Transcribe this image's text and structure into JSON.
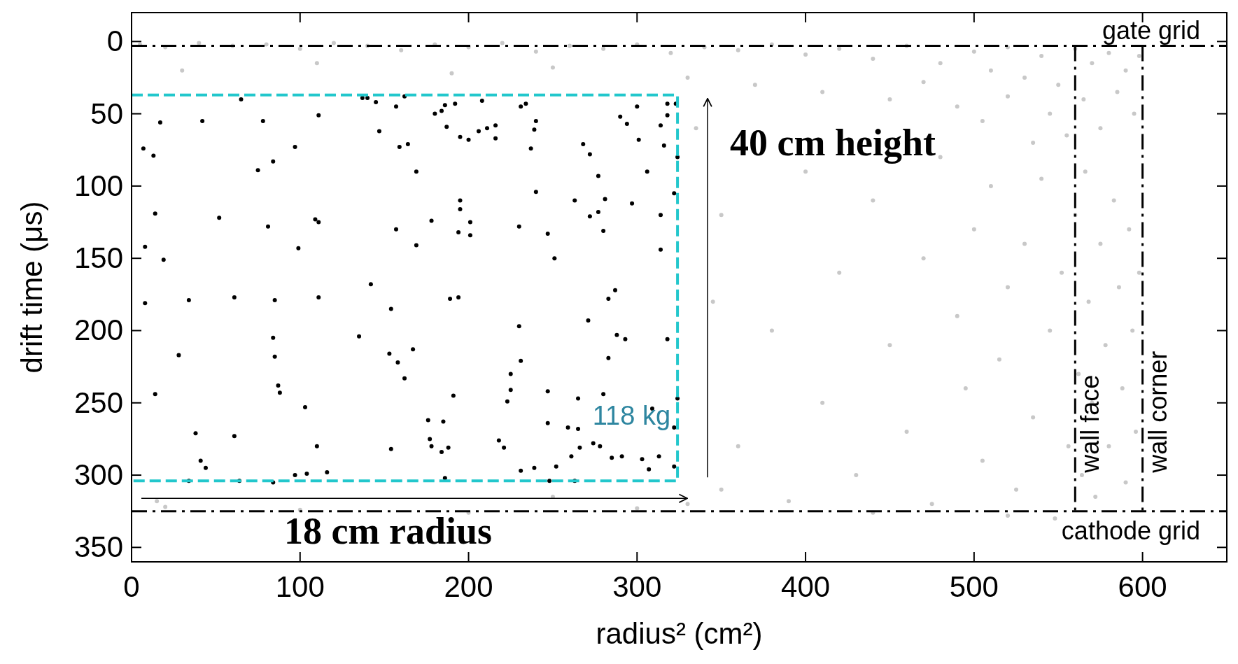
{
  "chart_data": {
    "type": "scatter",
    "xlabel": "radius² (cm²)",
    "ylabel": "drift time (μs)",
    "xlim": [
      0,
      650
    ],
    "ylim": [
      360,
      -20
    ],
    "xticks": [
      0,
      100,
      200,
      300,
      400,
      500,
      600
    ],
    "yticks": [
      0,
      50,
      100,
      150,
      200,
      250,
      300,
      350
    ],
    "series": [
      {
        "color": "#c8c8c8",
        "marker": "circle",
        "x": [
          5,
          20,
          40,
          60,
          80,
          100,
          120,
          140,
          160,
          180,
          200,
          220,
          240,
          260,
          280,
          300,
          320,
          340,
          360,
          380,
          400,
          420,
          440,
          460,
          480,
          500,
          510,
          520,
          530,
          540,
          550,
          560,
          565,
          570,
          575,
          580,
          585,
          590,
          595,
          598,
          30,
          110,
          190,
          250,
          330,
          370,
          410,
          450,
          470,
          490,
          505,
          520,
          535,
          545,
          555,
          350,
          380,
          400,
          410,
          420,
          430,
          440,
          450,
          460,
          470,
          475,
          480,
          490,
          495,
          500,
          505,
          510,
          515,
          520,
          525,
          530,
          535,
          540,
          545,
          548,
          552,
          556,
          560,
          562,
          564,
          566,
          568,
          570,
          572,
          575,
          578,
          580,
          583,
          586,
          588,
          590,
          592,
          594,
          596,
          598,
          20,
          100,
          200,
          300,
          350,
          390,
          440,
          520,
          335,
          345,
          360,
          330,
          15,
          250
        ],
        "values": [
          2,
          4,
          1,
          3,
          2,
          5,
          1,
          3,
          6,
          2,
          4,
          1,
          7,
          3,
          5,
          2,
          8,
          4,
          6,
          2,
          9,
          5,
          12,
          3,
          15,
          7,
          20,
          4,
          25,
          10,
          30,
          5,
          40,
          15,
          60,
          8,
          35,
          20,
          50,
          10,
          20,
          15,
          22,
          18,
          25,
          30,
          35,
          40,
          28,
          45,
          55,
          38,
          70,
          50,
          65,
          120,
          200,
          90,
          250,
          160,
          300,
          110,
          210,
          270,
          150,
          320,
          80,
          190,
          240,
          130,
          290,
          100,
          220,
          170,
          310,
          140,
          260,
          95,
          200,
          330,
          160,
          280,
          120,
          230,
          300,
          90,
          180,
          250,
          315,
          140,
          210,
          280,
          110,
          170,
          240,
          305,
          130,
          200,
          270,
          160,
          322,
          324,
          326,
          323,
          310,
          318,
          326,
          328,
          60,
          180,
          280,
          320,
          318,
          315
        ]
      },
      {
        "color": "#000000",
        "marker": "circle",
        "x": [
          65,
          17,
          42,
          78,
          111,
          137,
          140,
          145,
          157,
          162,
          147,
          7,
          13,
          97,
          84,
          75,
          159,
          164,
          169,
          14,
          52,
          81,
          109,
          111,
          157,
          8,
          19,
          99,
          169,
          142,
          8,
          34,
          61,
          85,
          111,
          154,
          84,
          135,
          28,
          85,
          153,
          158,
          167,
          162,
          14,
          87,
          88,
          103,
          38,
          61,
          110,
          154,
          41,
          44,
          34,
          64,
          84,
          97,
          104,
          116,
          186,
          192,
          184,
          180,
          208,
          231,
          234,
          187,
          195,
          200,
          206,
          211,
          216,
          216,
          240,
          239,
          237,
          300,
          318,
          323,
          318,
          290,
          294,
          314,
          301,
          316,
          268,
          272,
          324,
          277,
          306,
          240,
          195,
          195,
          263,
          281,
          297,
          272,
          277,
          322,
          314,
          178,
          201,
          194,
          201,
          230,
          247,
          280,
          314,
          251,
          287,
          283,
          189,
          194,
          230,
          271,
          288,
          293,
          318,
          231,
          283,
          225,
          225,
          223,
          191,
          247,
          265,
          280,
          324,
          309,
          176,
          185,
          247,
          259,
          265,
          322,
          177,
          178,
          184,
          188,
          218,
          221,
          266,
          274,
          278,
          261,
          285,
          291,
          303,
          313,
          322,
          307,
          231,
          239,
          252,
          186,
          248,
          263
        ],
        "values": [
          40,
          56,
          55,
          55,
          51,
          39,
          39,
          42,
          45,
          38,
          62,
          74,
          79,
          73,
          83,
          89,
          73,
          71,
          90,
          119,
          122,
          128,
          123,
          125,
          130,
          142,
          151,
          143,
          141,
          168,
          181,
          179,
          177,
          179,
          177,
          185,
          205,
          204,
          217,
          218,
          216,
          222,
          213,
          233,
          244,
          238,
          243,
          253,
          271,
          273,
          280,
          282,
          290,
          295,
          304,
          304,
          305,
          300,
          299,
          298,
          44,
          43,
          48,
          50,
          41,
          45,
          43,
          59,
          66,
          68,
          62,
          60,
          58,
          67,
          55,
          61,
          74,
          45,
          43,
          43,
          51,
          52,
          57,
          58,
          68,
          72,
          71,
          78,
          80,
          93,
          90,
          104,
          110,
          116,
          110,
          109,
          112,
          121,
          118,
          105,
          120,
          124,
          125,
          132,
          134,
          128,
          133,
          131,
          144,
          150,
          172,
          178,
          178,
          177,
          197,
          193,
          203,
          206,
          206,
          221,
          219,
          230,
          241,
          249,
          245,
          242,
          247,
          244,
          247,
          254,
          262,
          263,
          264,
          267,
          268,
          267,
          275,
          280,
          284,
          281,
          276,
          281,
          281,
          278,
          280,
          287,
          288,
          287,
          289,
          287,
          294,
          296,
          297,
          295,
          294,
          302,
          304,
          304
        ]
      },
      {
        "type": "line",
        "color": "#22c7cc",
        "line_style": "dashed",
        "marker": "none",
        "x": [
          0,
          324,
          324,
          0
        ],
        "values": [
          37,
          37,
          304,
          304
        ]
      }
    ],
    "ref_lines": [
      {
        "axis": "y",
        "value": 3,
        "label": "gate grid",
        "color": "#000000",
        "line_style": "dashed"
      },
      {
        "axis": "y",
        "value": 325,
        "label": "cathode grid",
        "color": "#000000",
        "line_style": "dashed"
      },
      {
        "axis": "x",
        "value": 560,
        "label": "wall face",
        "color": "#000000",
        "line_style": "dashed"
      },
      {
        "axis": "x",
        "value": 600,
        "label": "wall corner",
        "color": "#000000",
        "line_style": "dashed"
      }
    ],
    "annotations": [
      "40 cm height",
      "18 cm radius",
      "118 kg"
    ]
  }
}
